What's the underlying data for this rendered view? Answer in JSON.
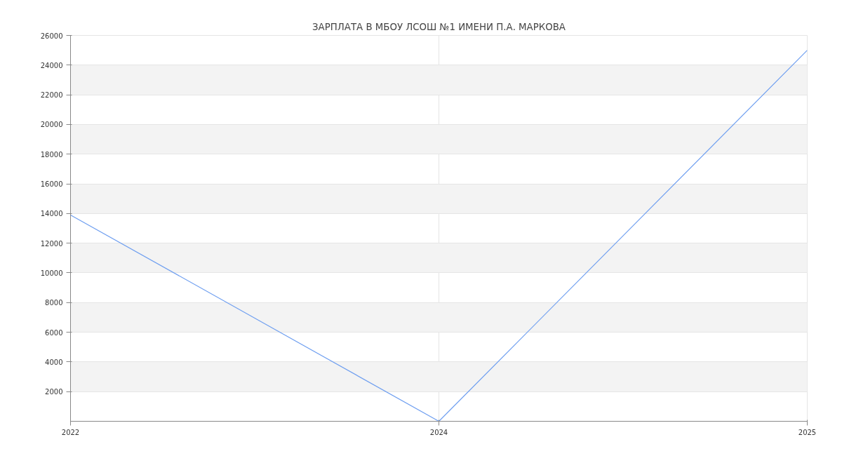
{
  "chart_data": {
    "type": "line",
    "title": "ЗАРПЛАТА В МБОУ ЛСОШ №1 ИМЕНИ П.А. МАРКОВА",
    "categories": [
      "2022",
      "2024",
      "2025"
    ],
    "series": [
      {
        "color": "#6f9ff0",
        "values": [
          13900,
          0,
          25000
        ]
      }
    ],
    "ylim": [
      0,
      26000
    ],
    "yticks": [
      2000,
      4000,
      6000,
      8000,
      10000,
      12000,
      14000,
      16000,
      18000,
      20000,
      22000,
      24000,
      26000
    ],
    "grid": true,
    "marker": "none",
    "line_style": "solid"
  }
}
